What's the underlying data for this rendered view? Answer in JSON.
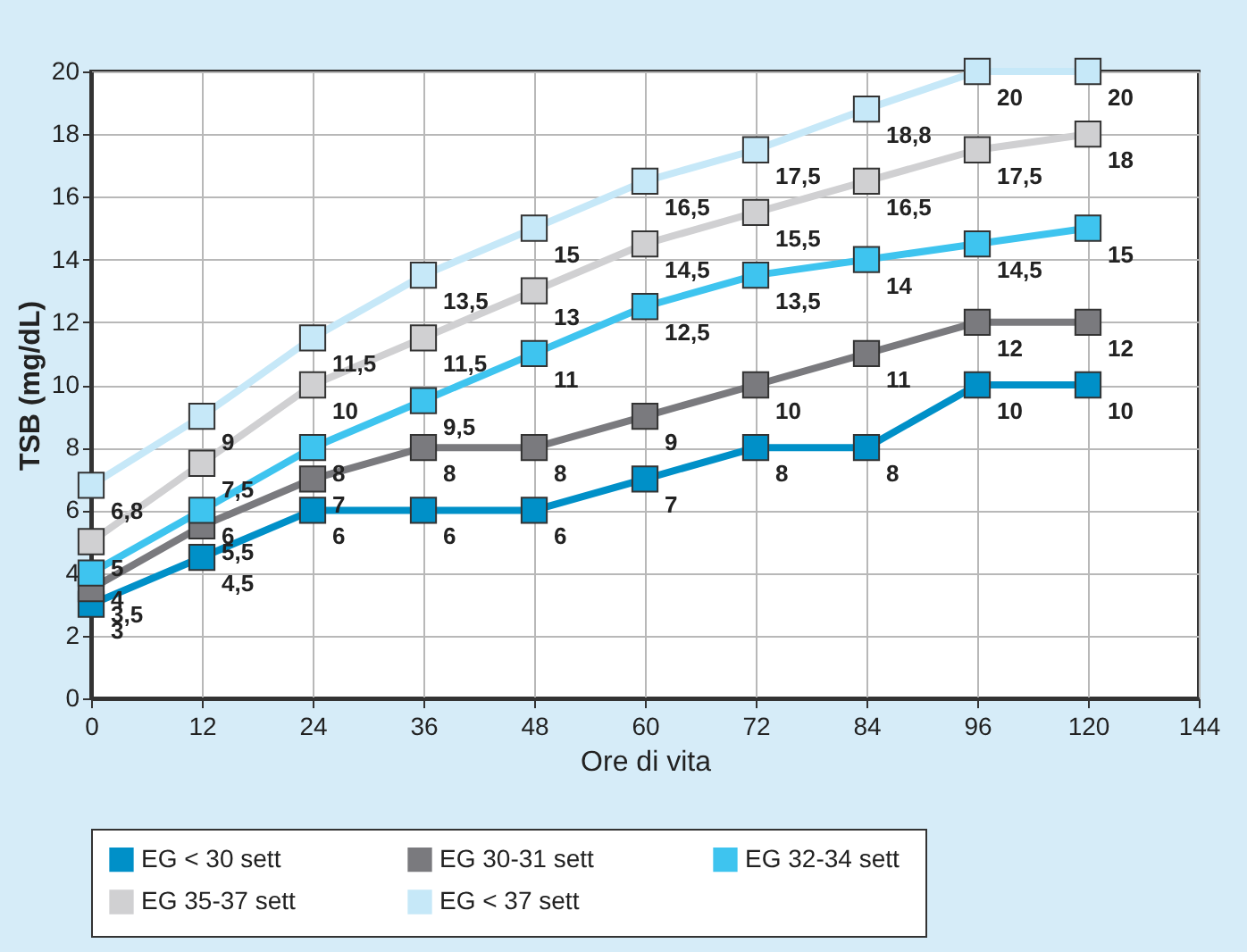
{
  "chart_data": {
    "type": "line",
    "xlabel": "Ore di vita",
    "ylabel": "TSB (mg/dL)",
    "categories": [
      "0",
      "12",
      "24",
      "36",
      "48",
      "60",
      "72",
      "84",
      "96",
      "120",
      "144"
    ],
    "ylim": [
      0,
      20
    ],
    "yticks": [
      0,
      2,
      4,
      6,
      8,
      10,
      12,
      14,
      16,
      18,
      20
    ],
    "grid": true,
    "legend": "bottom",
    "marker": "square",
    "series": [
      {
        "name": "EG < 30 sett",
        "color": "#0090c8",
        "values": [
          3,
          4.5,
          6,
          6,
          6,
          7,
          8,
          8,
          10,
          10,
          null
        ],
        "value_labels": [
          "3",
          "4,5",
          "6",
          "6",
          "6",
          "7",
          "8",
          "8",
          "10",
          "10",
          null
        ]
      },
      {
        "name": "EG  30-31 sett",
        "color": "#7a7a7e",
        "values": [
          3.5,
          5.5,
          7,
          8,
          8,
          9,
          10,
          11,
          12,
          12,
          null
        ],
        "value_labels": [
          "3,5",
          "5,5",
          "7",
          "8",
          "8",
          "9",
          "10",
          "11",
          "12",
          "12",
          null
        ]
      },
      {
        "name": "EG  32-34 sett",
        "color": "#3ec4ef",
        "values": [
          4,
          6,
          8,
          9.5,
          11,
          12.5,
          13.5,
          14,
          14.5,
          15,
          null
        ],
        "value_labels": [
          "4",
          "6",
          "8",
          "9,5",
          "11",
          "12,5",
          "13,5",
          "14",
          "14,5",
          "15",
          null
        ]
      },
      {
        "name": "EG 35-37 sett",
        "color": "#d0d0d2",
        "values": [
          5,
          7.5,
          10,
          11.5,
          13,
          14.5,
          15.5,
          16.5,
          17.5,
          18,
          null
        ],
        "value_labels": [
          "5",
          "7,5",
          "10",
          "11,5",
          "13",
          "14,5",
          "15,5",
          "16,5",
          "17,5",
          "18",
          null
        ]
      },
      {
        "name": "EG < 37 sett",
        "color": "#c6e8f8",
        "values": [
          6.8,
          9,
          11.5,
          13.5,
          15,
          16.5,
          17.5,
          18.8,
          20,
          20,
          null
        ],
        "value_labels": [
          "6,8",
          "9",
          "11,5",
          "13,5",
          "15",
          "16,5",
          "17,5",
          "18,8",
          "20",
          "20",
          null
        ]
      }
    ]
  }
}
